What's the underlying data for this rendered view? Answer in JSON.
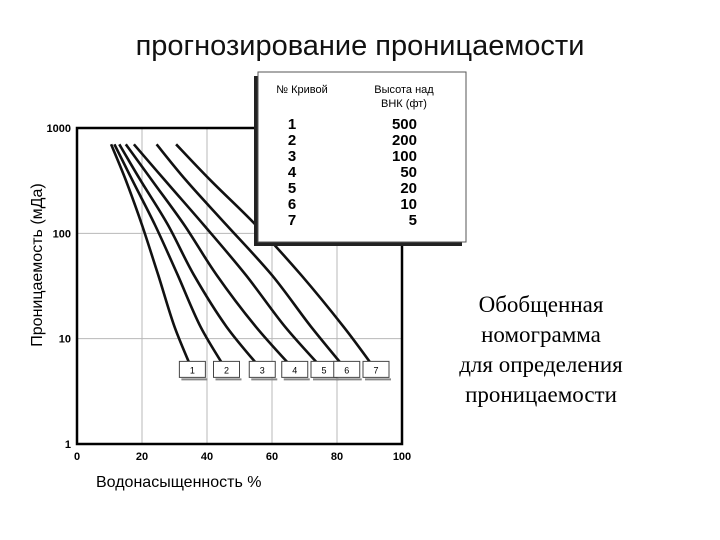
{
  "slide": {
    "title": "прогнозирование проницаемости",
    "side_text": [
      "Обобщенная",
      "номограмма",
      "для определения",
      "проницаемости"
    ]
  },
  "colors": {
    "curve": "#111111",
    "grid": "#b8b8b8",
    "legend_border": "#555555"
  },
  "chart_data": {
    "type": "line",
    "xlabel": "Водонасыщенность %",
    "ylabel": "Проницаемость (мДа)",
    "x_ticks": [
      "0",
      "20",
      "40",
      "60",
      "80",
      "100"
    ],
    "y_ticks": [
      "1",
      "10",
      "100",
      "1000"
    ],
    "xlim": [
      0,
      100
    ],
    "ylim": [
      1,
      1000
    ],
    "y_scale": "log",
    "grid": true,
    "legend": {
      "position": "top-right",
      "header_curve": "№ Кривой",
      "header_height": "Высота над ВНК (фт)",
      "rows": [
        {
          "curve": "1",
          "height": "500"
        },
        {
          "curve": "2",
          "height": "200"
        },
        {
          "curve": "3",
          "height": "100"
        },
        {
          "curve": "4",
          "height": "50"
        },
        {
          "curve": "5",
          "height": "20"
        },
        {
          "curve": "6",
          "height": "10"
        },
        {
          "curve": "7",
          "height": "5"
        }
      ]
    },
    "series": [
      {
        "label": "1",
        "x": [
          10.5,
          15,
          20,
          25,
          30,
          35.5
        ],
        "y": [
          700,
          320,
          120,
          40,
          13,
          5
        ]
      },
      {
        "label": "2",
        "x": [
          11.5,
          17,
          24,
          31,
          38,
          46
        ],
        "y": [
          700,
          320,
          120,
          40,
          13,
          5
        ]
      },
      {
        "label": "3",
        "x": [
          13,
          19.5,
          28,
          36,
          46,
          57
        ],
        "y": [
          700,
          320,
          120,
          40,
          13,
          5
        ]
      },
      {
        "label": "4",
        "x": [
          15,
          23,
          33,
          43,
          55,
          67
        ],
        "y": [
          700,
          320,
          120,
          40,
          13,
          5
        ]
      },
      {
        "label": "5",
        "x": [
          17.5,
          27,
          39,
          52,
          64,
          76
        ],
        "y": [
          700,
          320,
          120,
          40,
          13,
          5
        ]
      },
      {
        "label": "6",
        "x": [
          24.5,
          33.5,
          46,
          60,
          72,
          83
        ],
        "y": [
          700,
          320,
          120,
          40,
          13,
          5
        ]
      },
      {
        "label": "7",
        "x": [
          30.5,
          41,
          55,
          69,
          82,
          92
        ],
        "y": [
          700,
          320,
          120,
          40,
          13,
          5
        ]
      }
    ],
    "curve_end_labels": [
      "1",
      "2",
      "3",
      "4",
      "5",
      "6",
      "7"
    ]
  }
}
